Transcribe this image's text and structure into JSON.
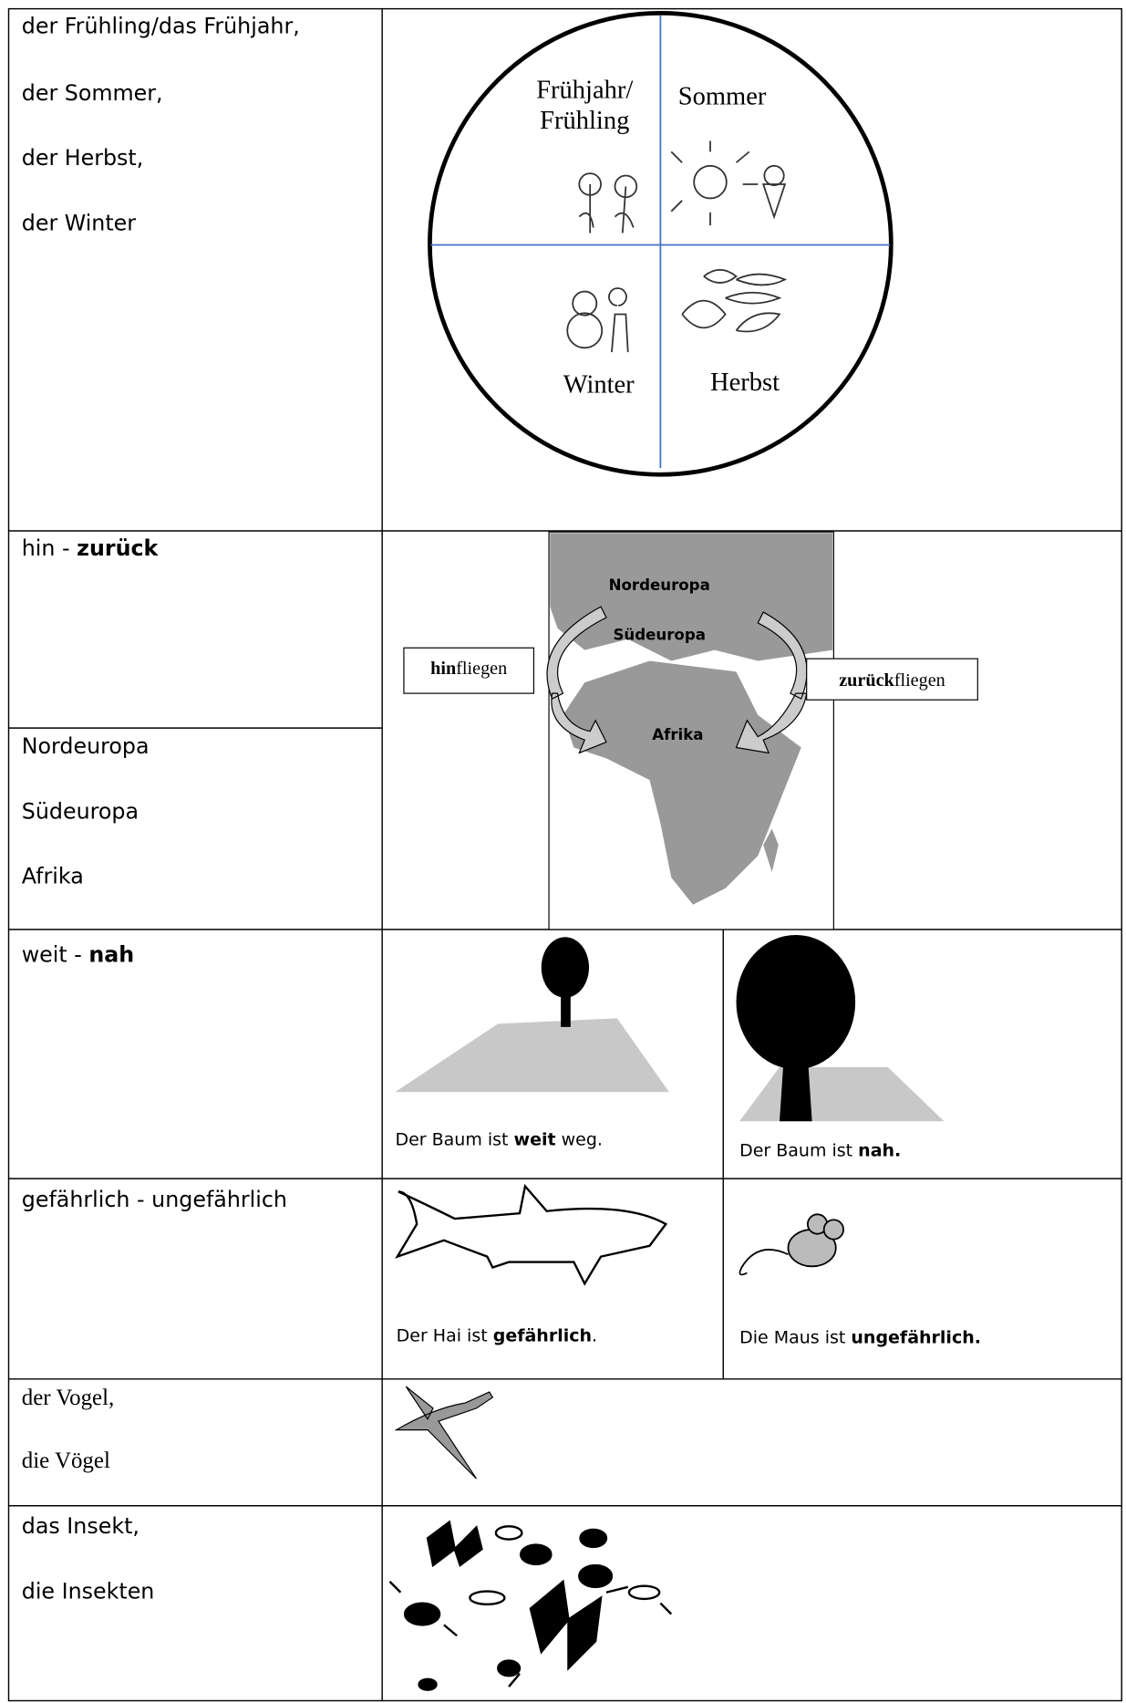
{
  "rows": [
    {
      "terms": [
        "der Frühling/das Frühjahr,",
        "der Sommer,",
        "der Herbst,",
        "der Winter"
      ],
      "circle": {
        "spring": [
          "Frühjahr/",
          "Frühling"
        ],
        "summer": "Sommer",
        "winter": "Winter",
        "autumn": "Herbst"
      }
    },
    {
      "pair": {
        "plain": "hin - ",
        "bold": "zurück"
      },
      "terms": [
        "Nordeuropa",
        "Südeuropa",
        "Afrika"
      ],
      "map": {
        "labels": [
          "Nordeuropa",
          "Südeuropa",
          "Afrika"
        ],
        "left_box": {
          "bold": "hin",
          "plain": "fliegen"
        },
        "right_box": {
          "bold": "zurück",
          "plain": "fliegen"
        }
      }
    },
    {
      "pair": {
        "plain": "weit - ",
        "bold": "nah"
      },
      "captions": [
        {
          "plain": "Der Baum ist ",
          "bold": "weit",
          "rest": " weg."
        },
        {
          "plain": "Der Baum ist ",
          "bold": "nah."
        }
      ]
    },
    {
      "pair": {
        "plain": "gefährlich - ungefährlich"
      },
      "captions": [
        {
          "plain": "Der Hai ist ",
          "bold": "gefährlich",
          "rest": "."
        },
        {
          "plain": "Die Maus ist ",
          "bold": "ungefährlich."
        }
      ]
    },
    {
      "terms": [
        "der Vogel,",
        "die Vögel"
      ]
    },
    {
      "terms": [
        "das Insekt,",
        "die Insekten"
      ]
    }
  ]
}
